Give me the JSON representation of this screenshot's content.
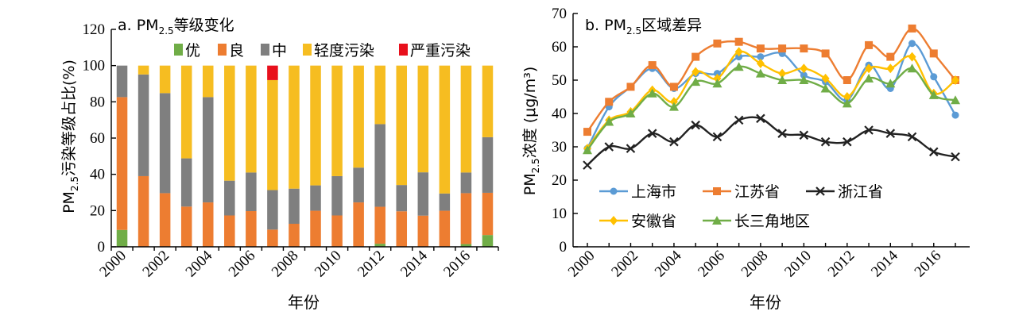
{
  "colors": {
    "excellent": "#70ad47",
    "good": "#ed7d31",
    "moderate": "#7f7f7f",
    "light": "#f6bd21",
    "severe": "#e8101c",
    "shanghai": "#5b9bd5",
    "jiangsu": "#ed7d31",
    "zhejiang": "#222222",
    "anhui": "#ffc000",
    "yrd": "#70ad47"
  },
  "chart_data": [
    {
      "type": "bar",
      "title": {
        "prefix": "a. PM",
        "sub": "2.5",
        "suffix": "等级变化"
      },
      "ylabel": {
        "prefix": "PM",
        "sub": "2.5",
        "suffix": "污染等级占比(%)"
      },
      "xlabel": "年份",
      "ylim": [
        0,
        120
      ],
      "yticks": [
        "0",
        "20",
        "40",
        "60",
        "80",
        "100",
        "120"
      ],
      "xtick_labels": [
        "2000",
        "2002",
        "2004",
        "2006",
        "2008",
        "2010",
        "2012",
        "2014",
        "2016"
      ],
      "categories": [
        "2000",
        "2001",
        "2002",
        "2003",
        "2004",
        "2005",
        "2006",
        "2007",
        "2008",
        "2009",
        "2010",
        "2011",
        "2012",
        "2013",
        "2014",
        "2015",
        "2016",
        "2017"
      ],
      "stacked": true,
      "legend_position": "top",
      "series": [
        {
          "name": "优",
          "color_key": "excellent",
          "values": [
            9.3,
            0,
            0,
            0,
            0,
            0,
            0,
            0,
            0,
            0,
            0,
            0,
            1.7,
            0,
            0,
            0,
            1.5,
            6.5
          ]
        },
        {
          "name": "良",
          "color_key": "good",
          "values": [
            73.3,
            39.0,
            29.6,
            22.2,
            24.5,
            17.3,
            19.7,
            9.5,
            12.7,
            19.9,
            17.3,
            24.5,
            20.4,
            19.6,
            17.2,
            19.9,
            28.1,
            23.3
          ]
        },
        {
          "name": "中",
          "color_key": "moderate",
          "values": [
            17.4,
            56.1,
            55.2,
            26.6,
            58.1,
            19.2,
            21.3,
            21.8,
            19.4,
            14.0,
            21.7,
            19.2,
            45.6,
            14.5,
            23.9,
            9.5,
            11.4,
            30.7
          ]
        },
        {
          "name": "轻度污染",
          "color_key": "light",
          "values": [
            0,
            4.9,
            15.2,
            51.2,
            17.4,
            63.5,
            59.0,
            60.7,
            67.9,
            66.1,
            61.0,
            56.3,
            32.3,
            65.9,
            58.9,
            70.6,
            59.0,
            39.5
          ]
        },
        {
          "name": "严重污染",
          "color_key": "severe",
          "values": [
            0,
            0,
            0,
            0,
            0,
            0,
            0,
            8.0,
            0,
            0,
            0,
            0,
            0,
            0,
            0,
            0,
            0,
            0
          ]
        }
      ]
    },
    {
      "type": "line",
      "title": {
        "prefix": "b. PM",
        "sub": "2.5",
        "suffix": "区域差异"
      },
      "ylabel": {
        "prefix": "PM",
        "sub": "2.5",
        "suffix": "浓度 (μg/m³)"
      },
      "xlabel": "年份",
      "ylim": [
        0,
        70
      ],
      "yticks": [
        "0",
        "10",
        "20",
        "30",
        "40",
        "50",
        "60",
        "70"
      ],
      "xtick_labels": [
        "2000",
        "2002",
        "2004",
        "2006",
        "2008",
        "2010",
        "2012",
        "2014",
        "2016"
      ],
      "x": [
        2000,
        2001,
        2002,
        2003,
        2004,
        2005,
        2006,
        2007,
        2008,
        2009,
        2010,
        2011,
        2012,
        2013,
        2014,
        2015,
        2016,
        2017
      ],
      "legend_position": "lower-left",
      "series": [
        {
          "name": "上海市",
          "color_key": "shanghai",
          "marker": "circle",
          "values": [
            29.5,
            42.0,
            48.0,
            53.5,
            47.5,
            52.0,
            52.0,
            57.0,
            57.0,
            58.0,
            51.5,
            49.5,
            44.0,
            54.5,
            47.5,
            61.0,
            51.0,
            39.5
          ]
        },
        {
          "name": "江苏省",
          "color_key": "jiangsu",
          "marker": "square",
          "values": [
            34.5,
            43.5,
            48.0,
            54.5,
            48.0,
            57.0,
            61.0,
            61.5,
            59.5,
            59.5,
            59.5,
            58.0,
            50.0,
            60.5,
            57.0,
            65.5,
            58.0,
            50.0
          ]
        },
        {
          "name": "浙江省",
          "color_key": "zhejiang",
          "marker": "x",
          "values": [
            24.5,
            30.0,
            29.5,
            34.0,
            31.5,
            36.5,
            33.0,
            38.0,
            38.5,
            34.0,
            33.5,
            31.5,
            31.5,
            35.0,
            34.0,
            33.0,
            28.5,
            27.0
          ]
        },
        {
          "name": "安徽省",
          "color_key": "anhui",
          "marker": "diamond",
          "values": [
            29.5,
            38.0,
            40.5,
            47.0,
            43.5,
            52.5,
            50.5,
            58.5,
            55.0,
            52.0,
            53.5,
            50.5,
            45.0,
            53.5,
            53.5,
            57.0,
            46.0,
            50.0
          ]
        },
        {
          "name": "长三角地区",
          "color_key": "yrd",
          "marker": "triangle",
          "values": [
            29.0,
            37.5,
            40.0,
            46.0,
            42.0,
            49.5,
            49.0,
            54.0,
            52.0,
            50.0,
            50.0,
            47.5,
            43.0,
            50.5,
            49.0,
            53.5,
            45.5,
            44.0
          ]
        }
      ]
    }
  ]
}
